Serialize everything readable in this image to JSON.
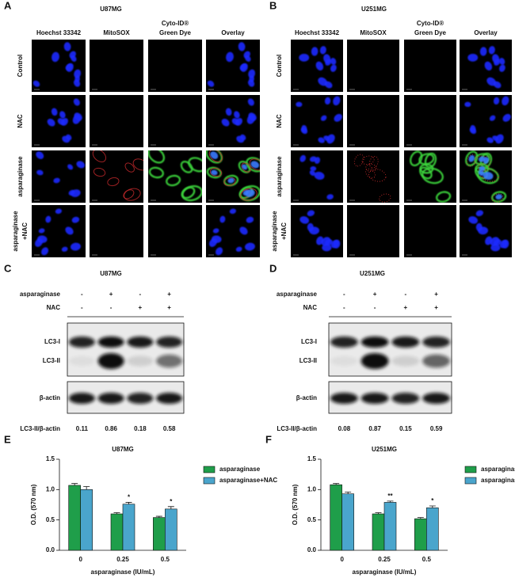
{
  "panels": {
    "A": {
      "label": "A",
      "title": "U87MG",
      "columns": [
        [
          "Hoechst 33342"
        ],
        [
          "MitoSOX"
        ],
        [
          "Cyto-ID®",
          "Green Dye"
        ],
        [
          "Overlay"
        ]
      ],
      "rows": [
        [
          "Control"
        ],
        [
          "NAC"
        ],
        [
          "asparaginase"
        ],
        [
          "asparaginase",
          "+NAC"
        ]
      ]
    },
    "B": {
      "label": "B",
      "title": "U251MG",
      "columns": [
        [
          "Hoechst 33342"
        ],
        [
          "MitoSOX"
        ],
        [
          "Cyto-ID®",
          "Green Dye"
        ],
        [
          "Overlay"
        ]
      ],
      "rows": [
        [
          "Control"
        ],
        [
          "NAC"
        ],
        [
          "asparaginase"
        ],
        [
          "asparaginase",
          "+NAC"
        ]
      ]
    },
    "C": {
      "label": "C",
      "title": "U87MG",
      "conditions": [
        {
          "name": "asparaginase",
          "signs": [
            "-",
            "+",
            "-",
            "+"
          ]
        },
        {
          "name": "NAC",
          "signs": [
            "-",
            "-",
            "+",
            "+"
          ]
        }
      ],
      "bands": [
        "LC3-I",
        "LC3-II",
        "β-actin"
      ],
      "ratio_label": "LC3-II/β-actin",
      "ratios": [
        0.11,
        0.86,
        0.18,
        0.58
      ]
    },
    "D": {
      "label": "D",
      "title": "U251MG",
      "conditions": [
        {
          "name": "asparaginase",
          "signs": [
            "-",
            "+",
            "-",
            "+"
          ]
        },
        {
          "name": "NAC",
          "signs": [
            "-",
            "-",
            "+",
            "+"
          ]
        }
      ],
      "bands": [
        "LC3-I",
        "LC3-II",
        "β-actin"
      ],
      "ratio_label": "LC3-II/β-actin",
      "ratios": [
        0.08,
        0.87,
        0.15,
        0.59
      ]
    }
  },
  "chart_data": [
    {
      "type": "bar",
      "panel_label": "E",
      "title": "U87MG",
      "x_label": "asparaginase (IU/mL)",
      "y_label": "O.D. (570 nm)",
      "categories": [
        "0",
        "0.25",
        "0.5"
      ],
      "series": [
        {
          "name": "asparaginase",
          "color": "#1f9e4a",
          "values": [
            1.07,
            0.6,
            0.54
          ],
          "errors": [
            0.03,
            0.02,
            0.02
          ]
        },
        {
          "name": "asparaginase+NAC",
          "color": "#4aa5cc",
          "values": [
            1.0,
            0.76,
            0.68
          ],
          "errors": [
            0.05,
            0.03,
            0.04
          ],
          "significance": [
            null,
            "*",
            "*"
          ]
        }
      ],
      "ylim": [
        0,
        1.5
      ],
      "yticks": [
        {
          "value": 0,
          "label": "0.0"
        },
        0.5,
        {
          "value": 1,
          "label": "1.0"
        },
        1.5
      ],
      "legend": "right"
    },
    {
      "type": "bar",
      "panel_label": "F",
      "title": "U251MG",
      "x_label": "asparaginase (IU/mL)",
      "y_label": "O.D. (570 nm)",
      "categories": [
        "0",
        "0.25",
        "0.5"
      ],
      "series": [
        {
          "name": "asparaginase",
          "color": "#1f9e4a",
          "values": [
            1.08,
            0.6,
            0.52
          ],
          "errors": [
            0.02,
            0.02,
            0.02
          ]
        },
        {
          "name": "asparaginase+NAC",
          "color": "#4aa5cc",
          "values": [
            0.93,
            0.79,
            0.7
          ],
          "errors": [
            0.03,
            0.02,
            0.03
          ],
          "significance": [
            null,
            "**",
            "*"
          ]
        }
      ],
      "ylim": [
        0,
        1.5
      ],
      "yticks": [
        {
          "value": 0,
          "label": "0.0"
        },
        0.5,
        {
          "value": 1,
          "label": "1.0"
        },
        1.5
      ],
      "legend": "right"
    }
  ]
}
